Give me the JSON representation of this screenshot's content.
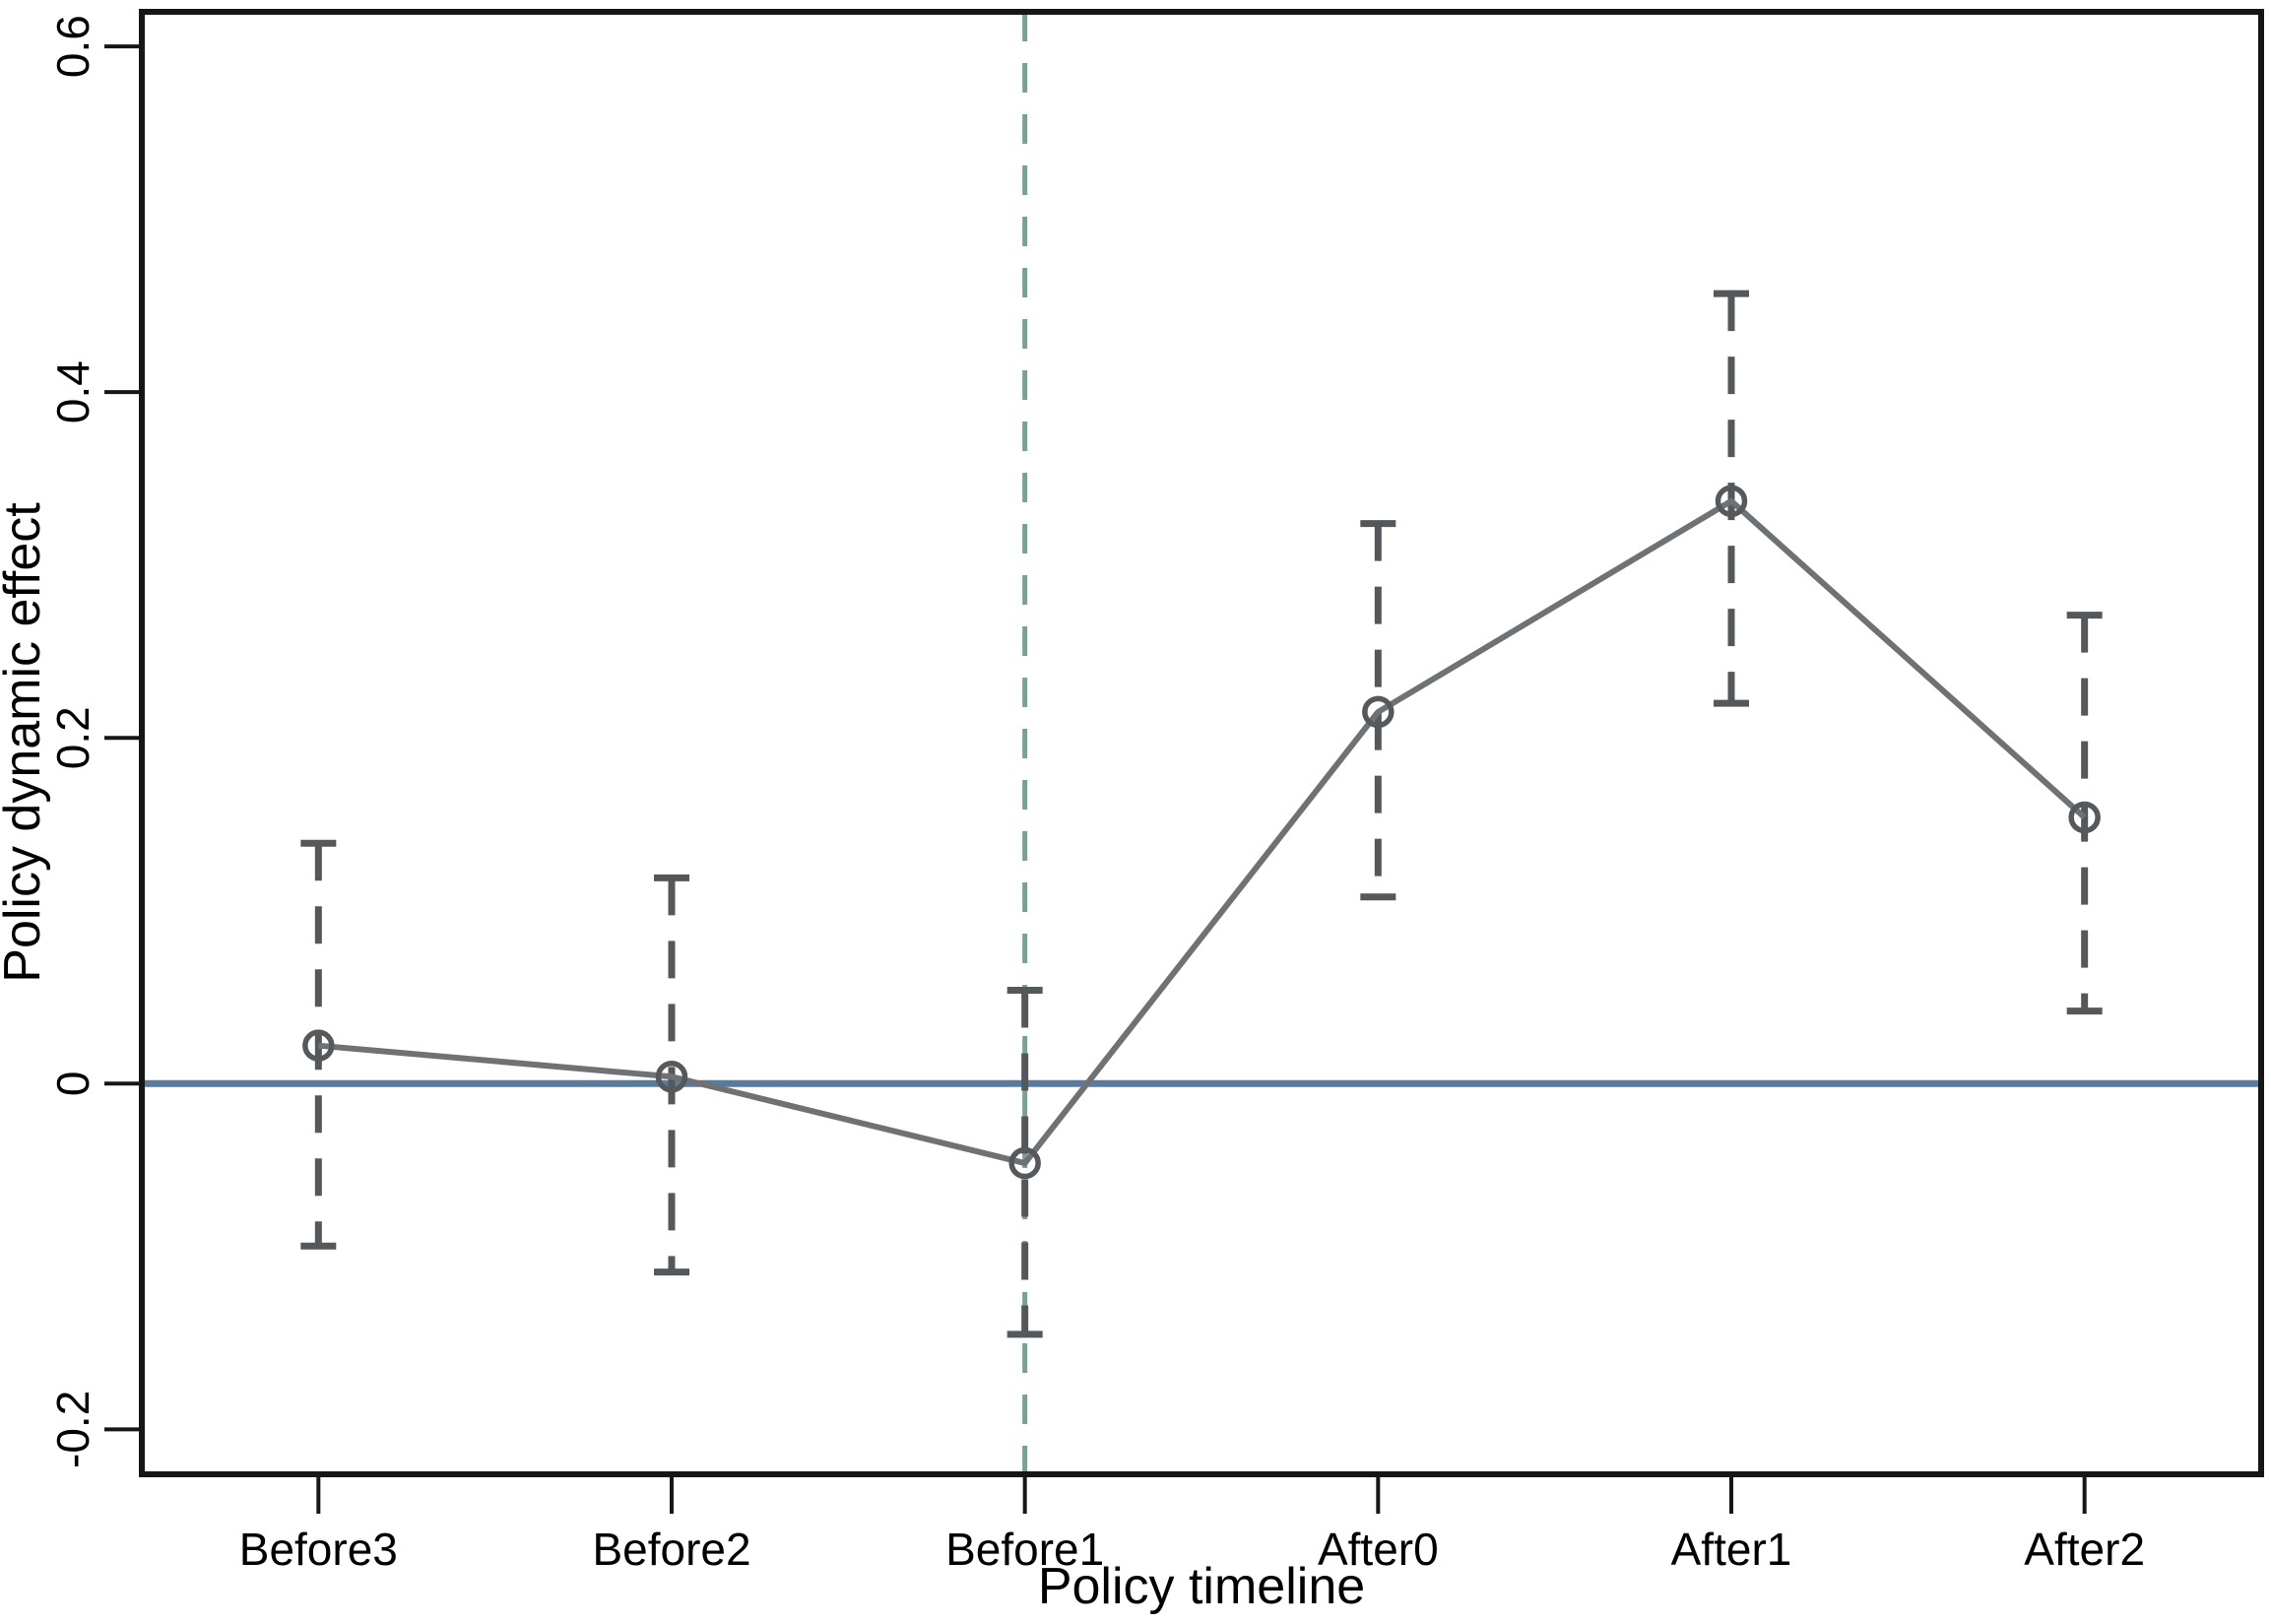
{
  "chart_data": {
    "type": "line",
    "title": "",
    "xlabel": "Policy timeline",
    "ylabel": "Policy dynamic effect",
    "categories": [
      "Before3",
      "Before2",
      "Before1",
      "After0",
      "After1",
      "After2"
    ],
    "series": [
      {
        "name": "Policy dynamic effect",
        "marker": "open-circle",
        "values": [
          0.022,
          0.004,
          -0.046,
          0.215,
          0.337,
          0.154
        ],
        "ci_lower": [
          -0.094,
          -0.109,
          -0.145,
          0.108,
          0.22,
          0.042
        ],
        "ci_upper": [
          0.139,
          0.119,
          0.054,
          0.324,
          0.457,
          0.271
        ]
      }
    ],
    "yticks": [
      -0.2,
      0,
      0.2,
      0.4,
      0.6
    ],
    "ytick_labels": [
      "-0.2",
      "0",
      "0.2",
      "0.4",
      "0.6"
    ],
    "ylim": [
      -0.226,
      0.62
    ],
    "grid": false,
    "legend": "none",
    "reference_lines": [
      {
        "type": "horizontal",
        "y": 0,
        "style": "solid",
        "color_key": "zero_line"
      },
      {
        "type": "vertical",
        "x_category": "Before1",
        "style": "dashed",
        "color_key": "vline"
      }
    ]
  },
  "colors": {
    "background": "#ffffff",
    "axis": "#161616",
    "text": "#000000",
    "zero_line": "#587b9e",
    "vline": "#7b9f96",
    "series_line": "#6f7274",
    "marker": "#56595c",
    "error_bar": "#54585b"
  }
}
